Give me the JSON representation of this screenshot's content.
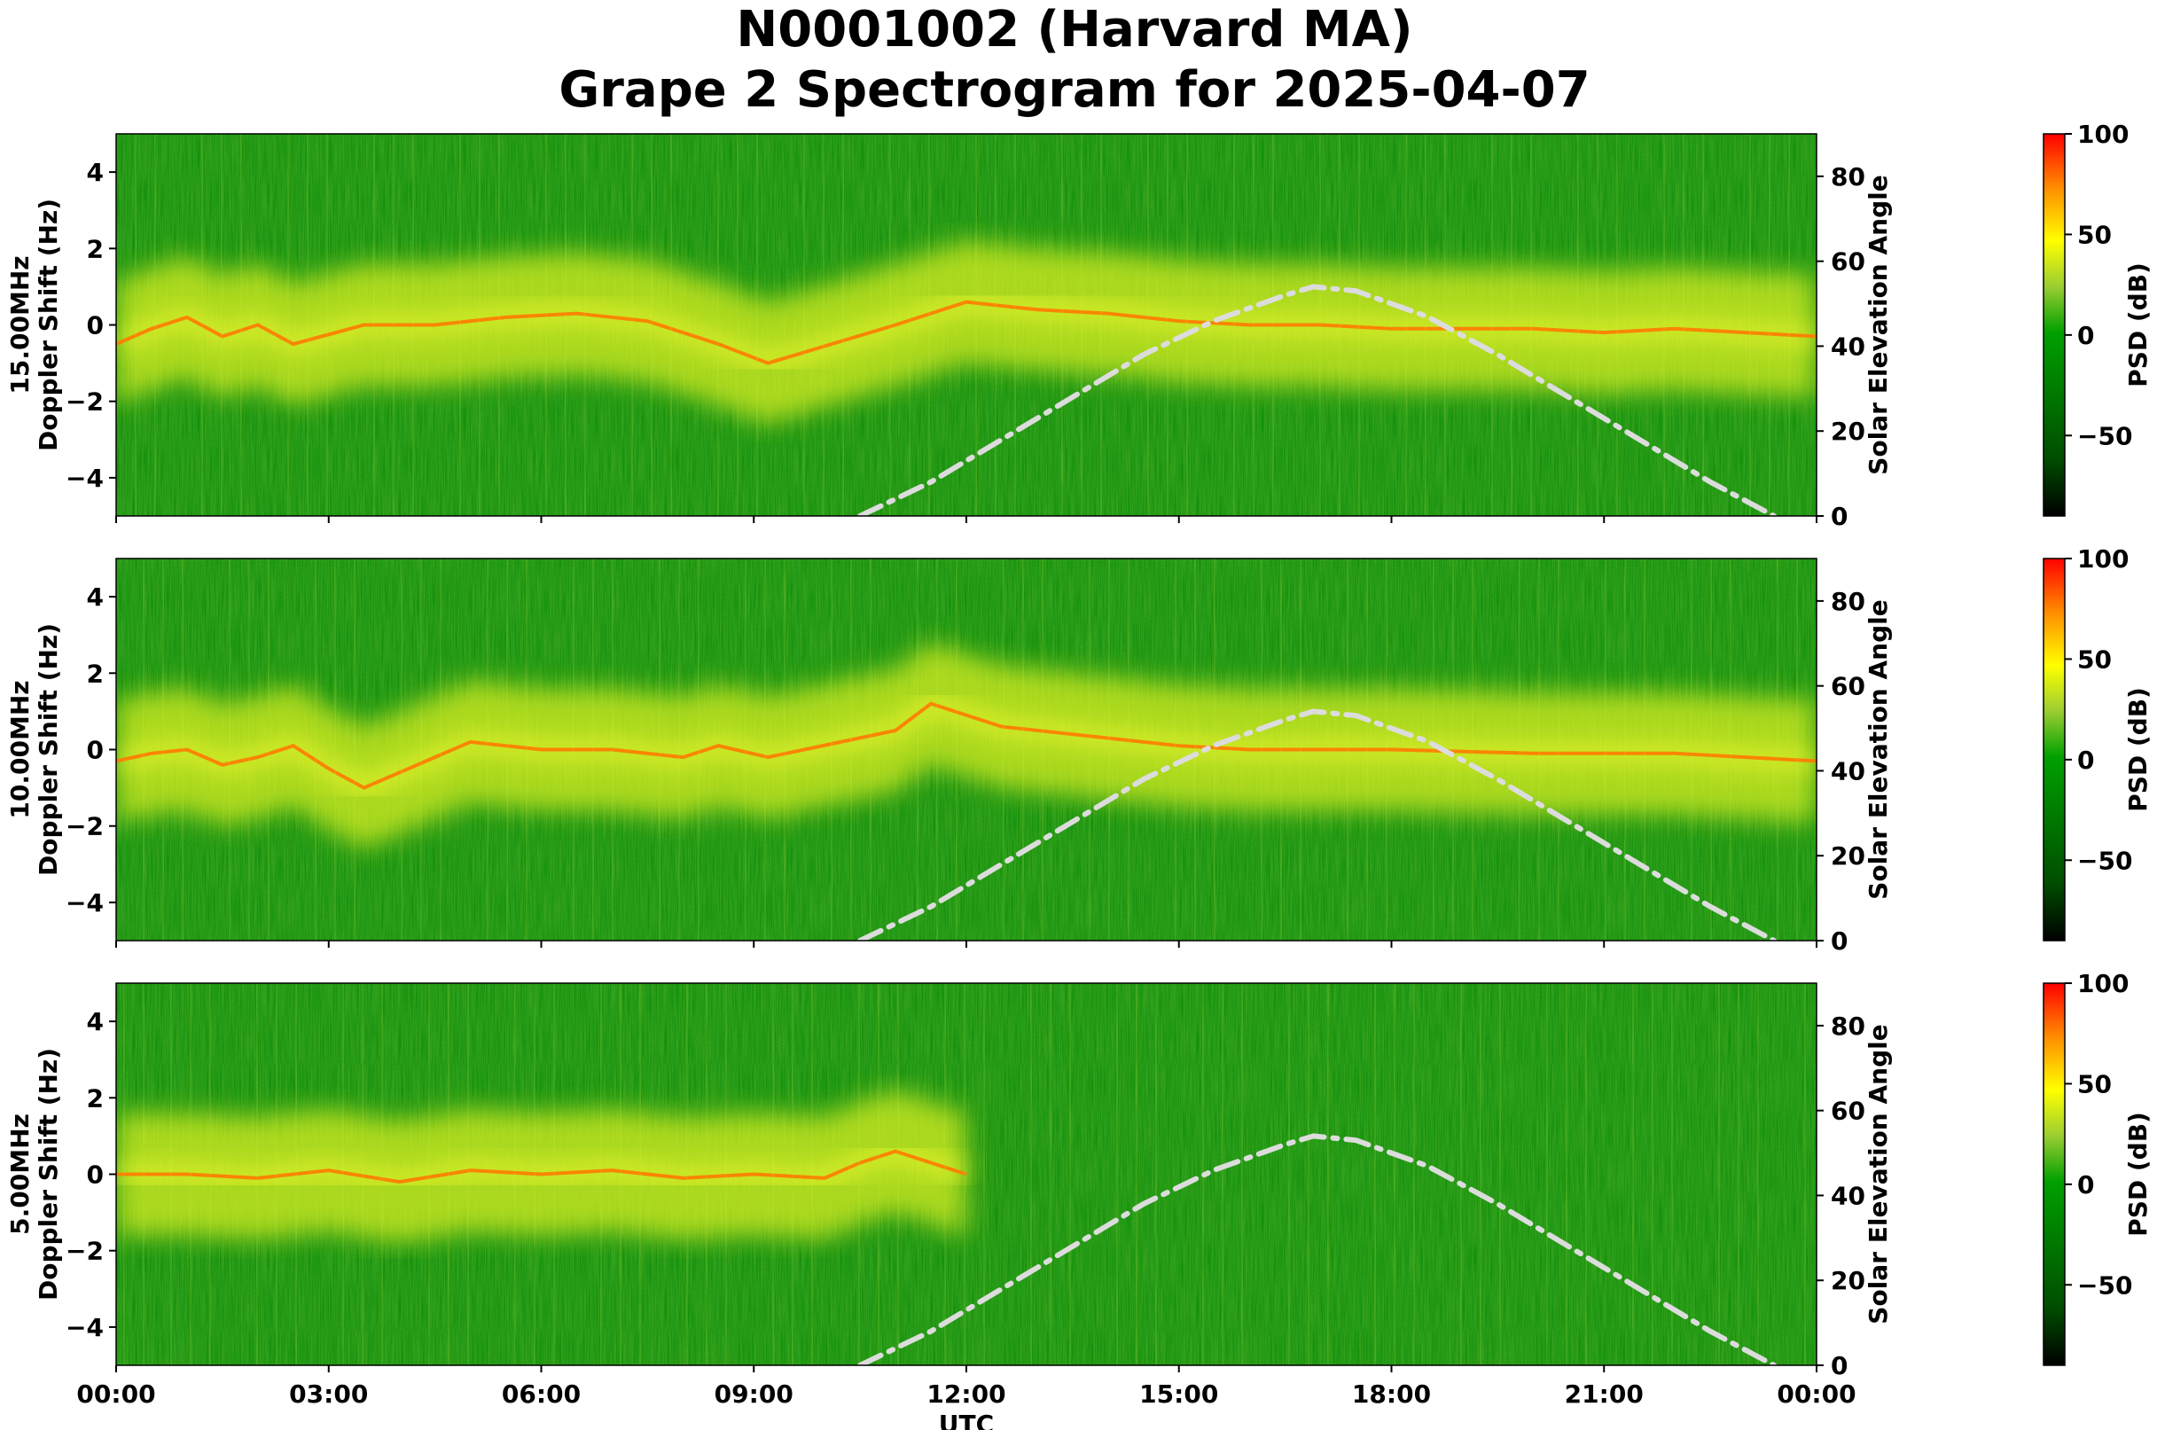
{
  "figure": {
    "title_line1": "N0001002 (Harvard MA)",
    "title_line2": "Grape 2 Spectrogram for 2025-04-07"
  },
  "chart_data": [
    {
      "type": "heatmap",
      "panel_label": "15.00MHz",
      "ylabel": "Doppler Shift (Hz)",
      "y2label": "Solar Elevation Angle",
      "xlabel": "",
      "ylim": [
        -5,
        5
      ],
      "y2lim": [
        0,
        90
      ],
      "yticks": [
        "−4",
        "−2",
        "0",
        "2",
        "4"
      ],
      "y2ticks": [
        "0",
        "20",
        "40",
        "60",
        "80"
      ],
      "colorbar": {
        "label": "PSD (dB)",
        "range": [
          -90,
          100
        ],
        "ticks": [
          "100",
          "50",
          "0",
          "−50"
        ],
        "colormap": [
          "#000000",
          "#006400",
          "#008000",
          "#00b000",
          "#ffff00",
          "#ff8c00",
          "#ff0000"
        ]
      },
      "doppler_trace": {
        "x_hours": [
          0,
          0.5,
          1,
          1.5,
          2,
          2.5,
          3.5,
          4.5,
          5.5,
          6.5,
          7.5,
          8.5,
          9.2,
          11,
          12,
          13,
          14,
          15,
          16,
          17,
          18,
          19,
          20,
          21,
          22,
          23,
          24
        ],
        "y_hz": [
          -0.5,
          -0.1,
          0.2,
          -0.3,
          0.0,
          -0.5,
          0.0,
          0.0,
          0.2,
          0.3,
          0.1,
          -0.5,
          -1.0,
          0.0,
          0.6,
          0.4,
          0.3,
          0.1,
          0.0,
          0.0,
          -0.1,
          -0.1,
          -0.1,
          -0.2,
          -0.1,
          -0.2,
          -0.3
        ]
      },
      "solar_elevation": {
        "x_hours": [
          10.5,
          11.5,
          12.5,
          13.5,
          14.5,
          15.5,
          16.5,
          16.9,
          17.5,
          18.5,
          19.5,
          20.5,
          21.5,
          22.5,
          23.4
        ],
        "y_deg": [
          0,
          8,
          18,
          28,
          38,
          46,
          52,
          54,
          53,
          47,
          38,
          28,
          18,
          8,
          0
        ]
      }
    },
    {
      "type": "heatmap",
      "panel_label": "10.00MHz",
      "ylabel": "Doppler Shift (Hz)",
      "y2label": "Solar Elevation Angle",
      "xlabel": "",
      "ylim": [
        -5,
        5
      ],
      "y2lim": [
        0,
        90
      ],
      "yticks": [
        "−4",
        "−2",
        "0",
        "2",
        "4"
      ],
      "y2ticks": [
        "0",
        "20",
        "40",
        "60",
        "80"
      ],
      "colorbar": {
        "label": "PSD (dB)",
        "range": [
          -90,
          100
        ],
        "ticks": [
          "100",
          "50",
          "0",
          "−50"
        ],
        "colormap": [
          "#000000",
          "#006400",
          "#008000",
          "#00b000",
          "#ffff00",
          "#ff8c00",
          "#ff0000"
        ]
      },
      "doppler_trace": {
        "x_hours": [
          0,
          0.5,
          1,
          1.5,
          2,
          2.5,
          3,
          3.5,
          4.5,
          5,
          6,
          7,
          8,
          8.5,
          9.2,
          11,
          11.5,
          12.5,
          14,
          15,
          16,
          17,
          18,
          20,
          22,
          24
        ],
        "y_hz": [
          -0.3,
          -0.1,
          0.0,
          -0.4,
          -0.2,
          0.1,
          -0.5,
          -1.0,
          -0.2,
          0.2,
          0.0,
          0.0,
          -0.2,
          0.1,
          -0.2,
          0.5,
          1.2,
          0.6,
          0.3,
          0.1,
          0.0,
          0.0,
          0.0,
          -0.1,
          -0.1,
          -0.3
        ]
      },
      "solar_elevation": {
        "x_hours": [
          10.5,
          11.5,
          12.5,
          13.5,
          14.5,
          15.5,
          16.5,
          16.9,
          17.5,
          18.5,
          19.5,
          20.5,
          21.5,
          22.5,
          23.4
        ],
        "y_deg": [
          0,
          8,
          18,
          28,
          38,
          46,
          52,
          54,
          53,
          47,
          38,
          28,
          18,
          8,
          0
        ]
      }
    },
    {
      "type": "heatmap",
      "panel_label": "5.00MHz",
      "ylabel": "Doppler Shift (Hz)",
      "y2label": "Solar Elevation Angle",
      "xlabel": "UTC",
      "xticks": [
        "00:00",
        "03:00",
        "06:00",
        "09:00",
        "12:00",
        "15:00",
        "18:00",
        "21:00",
        "00:00"
      ],
      "ylim": [
        -5,
        5
      ],
      "y2lim": [
        0,
        90
      ],
      "yticks": [
        "−4",
        "−2",
        "0",
        "2",
        "4"
      ],
      "y2ticks": [
        "0",
        "20",
        "40",
        "60",
        "80"
      ],
      "colorbar": {
        "label": "PSD (dB)",
        "range": [
          -90,
          100
        ],
        "ticks": [
          "100",
          "50",
          "0",
          "−50"
        ],
        "colormap": [
          "#000000",
          "#006400",
          "#008000",
          "#00b000",
          "#ffff00",
          "#ff8c00",
          "#ff0000"
        ]
      },
      "doppler_trace": {
        "x_hours": [
          0,
          1,
          2,
          3,
          4,
          5,
          6,
          7,
          8,
          9,
          10,
          10.5,
          11,
          11.5,
          12
        ],
        "y_hz": [
          0.0,
          0.0,
          -0.1,
          0.1,
          -0.2,
          0.1,
          0.0,
          0.1,
          -0.1,
          0.0,
          -0.1,
          0.3,
          0.6,
          0.3,
          0.0
        ]
      },
      "solar_elevation": {
        "x_hours": [
          10.5,
          11.5,
          12.5,
          13.5,
          14.5,
          15.5,
          16.5,
          16.9,
          17.5,
          18.5,
          19.5,
          20.5,
          21.5,
          22.5,
          23.4
        ],
        "y_deg": [
          0,
          8,
          18,
          28,
          38,
          46,
          52,
          54,
          53,
          47,
          38,
          28,
          18,
          8,
          0
        ]
      }
    }
  ]
}
